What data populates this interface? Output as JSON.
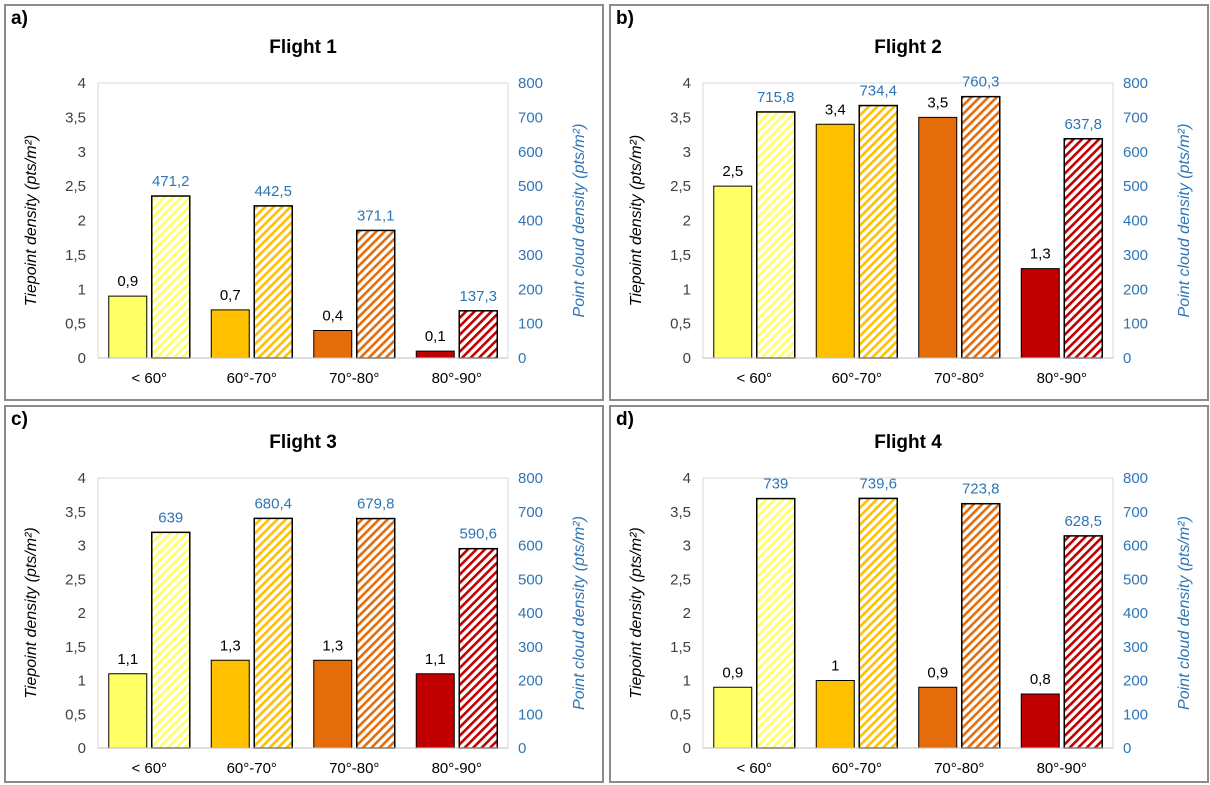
{
  "panels": [
    {
      "letter": "a)"
    },
    {
      "letter": "b)"
    },
    {
      "letter": "c)"
    },
    {
      "letter": "d)"
    }
  ],
  "colors": {
    "categories": [
      "#ffff66",
      "#ffc000",
      "#e46c0a",
      "#c00000"
    ],
    "series_b_label": "#2e75b6",
    "axis_right": "#2e75b6",
    "axis_left": "#404040",
    "gridline": "#d9d9d9",
    "bar_outline": "#000000"
  },
  "chart_data": [
    {
      "type": "bar",
      "title": "Flight 1",
      "categories": [
        "< 60°",
        "60°-70°",
        "70°-80°",
        "80°-90°"
      ],
      "ylabel": "Tiepoint density (pts/m²)",
      "y2label": "Point cloud density (pts/m²)",
      "ylim": [
        0,
        4
      ],
      "y2lim": [
        0,
        800
      ],
      "yticks": [
        "0",
        "0,5",
        "1",
        "1,5",
        "2",
        "2,5",
        "3",
        "3,5",
        "4"
      ],
      "y2ticks": [
        "0",
        "100",
        "200",
        "300",
        "400",
        "500",
        "600",
        "700",
        "800"
      ],
      "grid": false,
      "series": [
        {
          "axis": "left",
          "pattern": "solid",
          "values": [
            0.9,
            0.7,
            0.4,
            0.1
          ],
          "labels": [
            "0,9",
            "0,7",
            "0,4",
            "0,1"
          ]
        },
        {
          "axis": "right",
          "pattern": "hatched",
          "values": [
            471.2,
            442.5,
            371.1,
            137.3
          ],
          "labels": [
            "471,2",
            "442,5",
            "371,1",
            "137,3"
          ]
        }
      ]
    },
    {
      "type": "bar",
      "title": "Flight 2",
      "categories": [
        "< 60°",
        "60°-70°",
        "70°-80°",
        "80°-90°"
      ],
      "ylabel": "Tiepoint density (pts/m²)",
      "y2label": "Point cloud density (pts/m²)",
      "ylim": [
        0,
        4
      ],
      "y2lim": [
        0,
        800
      ],
      "yticks": [
        "0",
        "0,5",
        "1",
        "1,5",
        "2",
        "2,5",
        "3",
        "3,5",
        "4"
      ],
      "y2ticks": [
        "0",
        "100",
        "200",
        "300",
        "400",
        "500",
        "600",
        "700",
        "800"
      ],
      "grid": false,
      "series": [
        {
          "axis": "left",
          "pattern": "solid",
          "values": [
            2.5,
            3.4,
            3.5,
            1.3
          ],
          "labels": [
            "2,5",
            "3,4",
            "3,5",
            "1,3"
          ]
        },
        {
          "axis": "right",
          "pattern": "hatched",
          "values": [
            715.8,
            734.4,
            760.3,
            637.8
          ],
          "labels": [
            "715,8",
            "734,4",
            "760,3",
            "637,8"
          ]
        }
      ]
    },
    {
      "type": "bar",
      "title": "Flight 3",
      "categories": [
        "< 60°",
        "60°-70°",
        "70°-80°",
        "80°-90°"
      ],
      "ylabel": "Tiepoint density (pts/m²)",
      "y2label": "Point cloud density (pts/m²)",
      "ylim": [
        0,
        4
      ],
      "y2lim": [
        0,
        800
      ],
      "yticks": [
        "0",
        "0,5",
        "1",
        "1,5",
        "2",
        "2,5",
        "3",
        "3,5",
        "4"
      ],
      "y2ticks": [
        "0",
        "100",
        "200",
        "300",
        "400",
        "500",
        "600",
        "700",
        "800"
      ],
      "grid": false,
      "series": [
        {
          "axis": "left",
          "pattern": "solid",
          "values": [
            1.1,
            1.3,
            1.3,
            1.1
          ],
          "labels": [
            "1,1",
            "1,3",
            "1,3",
            "1,1"
          ]
        },
        {
          "axis": "right",
          "pattern": "hatched",
          "values": [
            639,
            680.4,
            679.8,
            590.6
          ],
          "labels": [
            "639",
            "680,4",
            "679,8",
            "590,6"
          ]
        }
      ]
    },
    {
      "type": "bar",
      "title": "Flight 4",
      "categories": [
        "< 60°",
        "60°-70°",
        "70°-80°",
        "80°-90°"
      ],
      "ylabel": "Tiepoint density (pts/m²)",
      "y2label": "Point cloud density (pts/m²)",
      "ylim": [
        0,
        4
      ],
      "y2lim": [
        0,
        800
      ],
      "yticks": [
        "0",
        "0,5",
        "1",
        "1,5",
        "2",
        "2,5",
        "3",
        "3,5",
        "4"
      ],
      "y2ticks": [
        "0",
        "100",
        "200",
        "300",
        "400",
        "500",
        "600",
        "700",
        "800"
      ],
      "grid": false,
      "series": [
        {
          "axis": "left",
          "pattern": "solid",
          "values": [
            0.9,
            1,
            0.9,
            0.8
          ],
          "labels": [
            "0,9",
            "1",
            "0,9",
            "0,8"
          ]
        },
        {
          "axis": "right",
          "pattern": "hatched",
          "values": [
            739,
            739.6,
            723.8,
            628.5
          ],
          "labels": [
            "739",
            "739,6",
            "723,8",
            "628,5"
          ]
        }
      ]
    }
  ]
}
